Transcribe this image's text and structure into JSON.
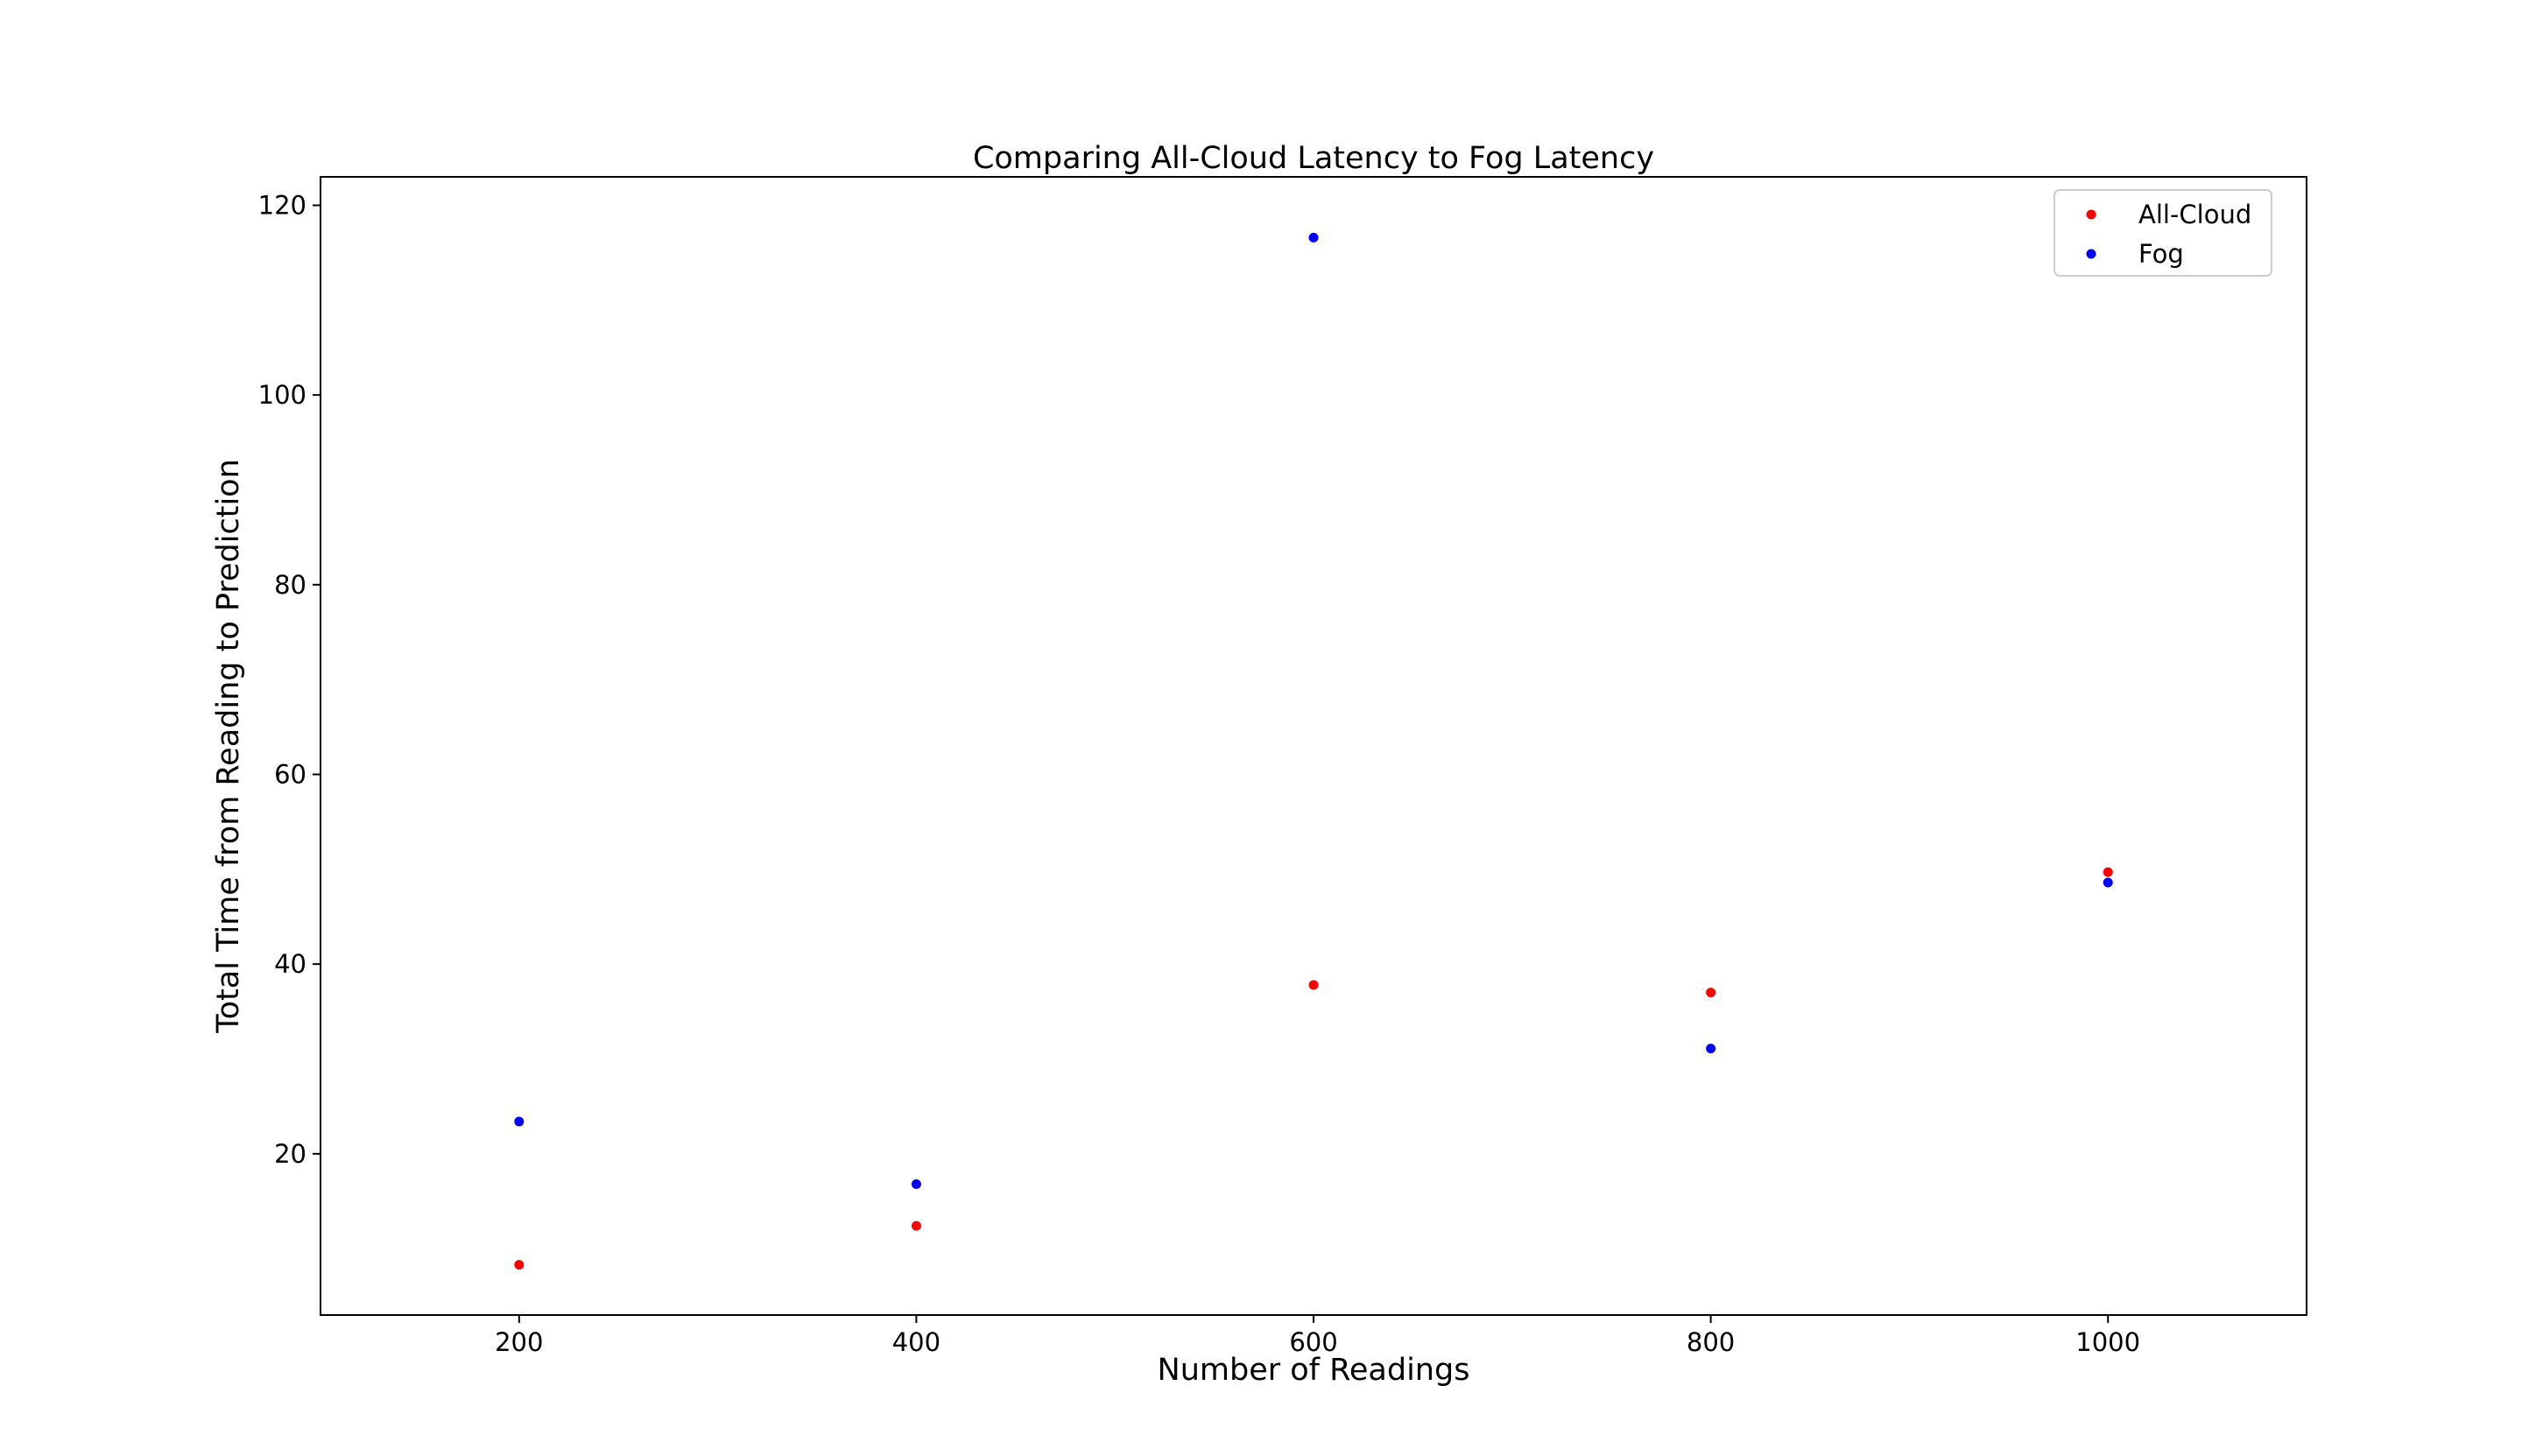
{
  "chart_data": {
    "type": "scatter",
    "title": "Comparing All-Cloud Latency to Fog Latency",
    "xlabel": "Number of Readings",
    "ylabel": "Total Time from Reading to Prediction",
    "xlim": [
      100,
      1100
    ],
    "ylim": [
      3,
      123
    ],
    "xticks": [
      200,
      400,
      600,
      800,
      1000
    ],
    "yticks": [
      20,
      40,
      60,
      80,
      100,
      120
    ],
    "grid": false,
    "legend_position": "top-right",
    "series": [
      {
        "name": "All-Cloud",
        "color": "#ff0000",
        "x": [
          200,
          400,
          600,
          800,
          1000
        ],
        "y": [
          8.3,
          12.4,
          37.8,
          37.0,
          49.7
        ]
      },
      {
        "name": "Fog",
        "color": "#0000ff",
        "x": [
          200,
          400,
          600,
          800,
          1000
        ],
        "y": [
          23.4,
          16.8,
          116.6,
          31.1,
          48.6
        ]
      }
    ]
  }
}
